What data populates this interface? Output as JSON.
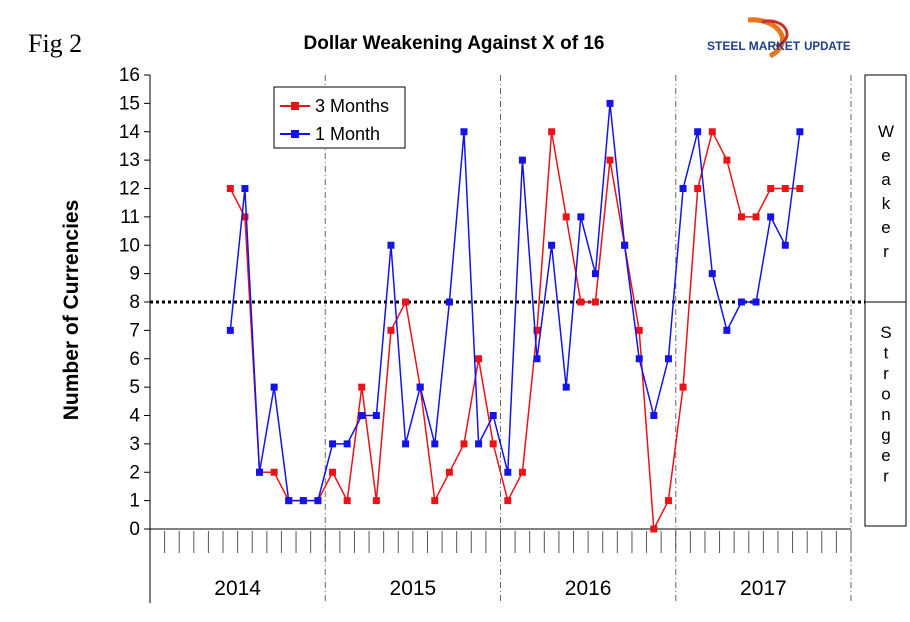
{
  "figure_label": "Fig 2",
  "logo": {
    "bold_text": "STEEL MARKET",
    "light_text": "UPDATE"
  },
  "side_panel": {
    "upper_word": "Weaker",
    "lower_word": "Stronger"
  },
  "chart_data": {
    "type": "line",
    "title": "Dollar Weakening Against X of 16",
    "xlabel": "",
    "ylabel": "Number of Currencies",
    "ylim": [
      0,
      16
    ],
    "yticks": [
      0,
      1,
      2,
      3,
      4,
      5,
      6,
      7,
      8,
      9,
      10,
      11,
      12,
      13,
      14,
      15,
      16
    ],
    "reference_line": 8,
    "months_total": 48,
    "years": [
      "2014",
      "2015",
      "2016",
      "2017"
    ],
    "legend_position": "top-left",
    "series": [
      {
        "name": "3 Months",
        "color": "#e8141a",
        "start_month": 5,
        "values": [
          12,
          11,
          2,
          2,
          1,
          1,
          1,
          2,
          1,
          5,
          1,
          7,
          8,
          5,
          1,
          2,
          3,
          6,
          3,
          1,
          2,
          7,
          14,
          11,
          8,
          8,
          13,
          10,
          7,
          0,
          1,
          5,
          12,
          14,
          13,
          11,
          11,
          12,
          12,
          12
        ]
      },
      {
        "name": "1 Month",
        "color": "#1414e6",
        "start_month": 5,
        "values": [
          7,
          12,
          2,
          5,
          1,
          1,
          1,
          3,
          3,
          4,
          4,
          10,
          3,
          5,
          3,
          8,
          14,
          3,
          4,
          2,
          13,
          6,
          10,
          5,
          11,
          9,
          15,
          10,
          6,
          4,
          6,
          12,
          14,
          9,
          7,
          8,
          8,
          11,
          10,
          14
        ]
      }
    ]
  }
}
